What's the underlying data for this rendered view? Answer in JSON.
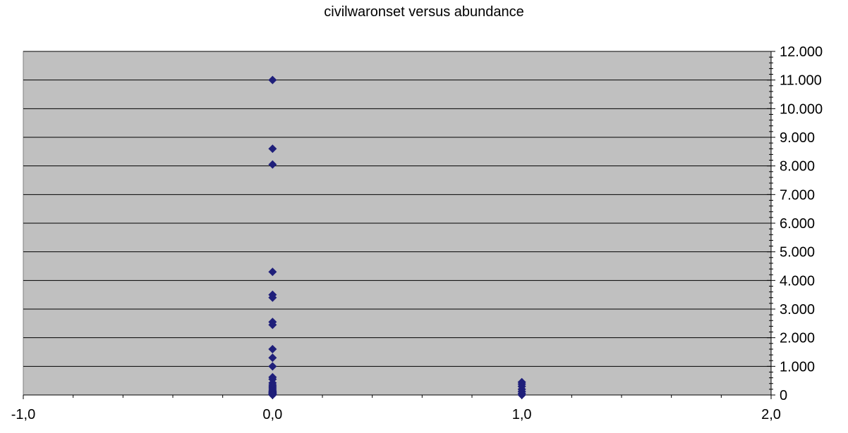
{
  "chart_data": {
    "type": "scatter",
    "title": "civilwaronset versus abundance",
    "xlabel": "",
    "ylabel": "",
    "xlim": [
      -1,
      2
    ],
    "ylim": [
      0,
      12000
    ],
    "x_ticks": [
      -1,
      0,
      1,
      2
    ],
    "x_tick_labels": [
      "-1,0",
      "0,0",
      "1,0",
      "2,0"
    ],
    "y_ticks": [
      0,
      1000,
      2000,
      3000,
      4000,
      5000,
      6000,
      7000,
      8000,
      9000,
      10000,
      11000,
      12000
    ],
    "y_tick_labels": [
      "0",
      "1.000",
      "2.000",
      "3.000",
      "4.000",
      "5.000",
      "6.000",
      "7.000",
      "8.000",
      "9.000",
      "10.000",
      "11.000",
      "12.000"
    ],
    "y_axis_side": "right",
    "grid": "horizontal",
    "legend": "none",
    "plot_background": "#c0c0c0",
    "marker_color": "#1f1f7a",
    "marker": "diamond",
    "series": [
      {
        "x": [
          0,
          0,
          0,
          0,
          0,
          0,
          0,
          0,
          0,
          0,
          0,
          0,
          0,
          0,
          0,
          0,
          0,
          0,
          0,
          0,
          0,
          0,
          0,
          0,
          0,
          0,
          0,
          0,
          1,
          1,
          1,
          1,
          1,
          1,
          1
        ],
        "y": [
          11000,
          8600,
          8050,
          4300,
          3500,
          3400,
          2550,
          2450,
          1600,
          1300,
          1000,
          620,
          550,
          420,
          350,
          300,
          250,
          200,
          150,
          120,
          100,
          80,
          60,
          40,
          30,
          20,
          10,
          0,
          450,
          380,
          300,
          200,
          120,
          50,
          0
        ]
      }
    ]
  }
}
